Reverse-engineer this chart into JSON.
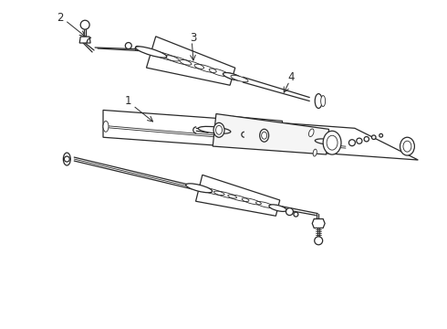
{
  "bg_color": "#ffffff",
  "line_color": "#2a2a2a",
  "label_fontsize": 8.5,
  "fig_width": 4.9,
  "fig_height": 3.6,
  "dpi": 100,
  "labels": [
    "1",
    "2",
    "3",
    "4"
  ]
}
